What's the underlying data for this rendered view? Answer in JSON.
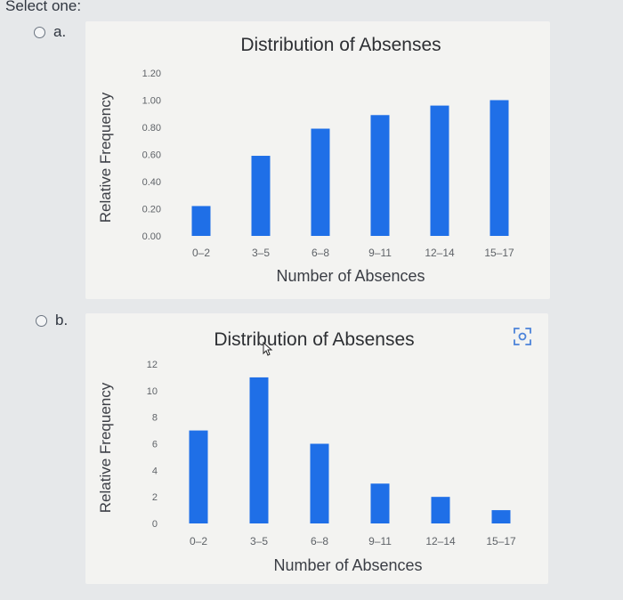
{
  "question": {
    "prompt": "Select one:"
  },
  "options": [
    {
      "label": "a.",
      "chart_title": "Distribution of Absenses",
      "xlabel": "Number of Absences",
      "ylabel": "Relative Frequency"
    },
    {
      "label": "b.",
      "chart_title": "Distribution of Absenses",
      "xlabel": "Number of Absences",
      "ylabel": "Relative Frequency"
    }
  ],
  "colors": {
    "bar": "#1f6fe7",
    "panel": "#f3f3f1",
    "page": "#e6e8ea",
    "text": "#303640",
    "icon": "#4b83d9"
  },
  "icons": {
    "expand": "expand-icon",
    "cursor": "mouse-pointer-icon"
  },
  "chart_data": [
    {
      "type": "bar",
      "title": "Distribution of Absenses",
      "xlabel": "Number of Absences",
      "ylabel": "Relative Frequency",
      "categories": [
        "0–2",
        "3–5",
        "6–8",
        "9–11",
        "12–14",
        "15–17"
      ],
      "values": [
        0.22,
        0.59,
        0.79,
        0.89,
        0.96,
        1.0
      ],
      "ylim": [
        0,
        1.2
      ],
      "yticks": [
        "0.00",
        "0.20",
        "0.40",
        "0.60",
        "0.80",
        "1.00",
        "1.20"
      ],
      "grid": false,
      "legend": "none"
    },
    {
      "type": "bar",
      "title": "Distribution of Absenses",
      "xlabel": "Number of Absences",
      "ylabel": "Relative Frequency",
      "categories": [
        "0–2",
        "3–5",
        "6–8",
        "9–11",
        "12–14",
        "15–17"
      ],
      "values": [
        7,
        11,
        6,
        3,
        2,
        1
      ],
      "ylim": [
        0,
        12
      ],
      "yticks": [
        "0",
        "2",
        "4",
        "6",
        "8",
        "10",
        "12"
      ],
      "grid": false,
      "legend": "none"
    }
  ]
}
